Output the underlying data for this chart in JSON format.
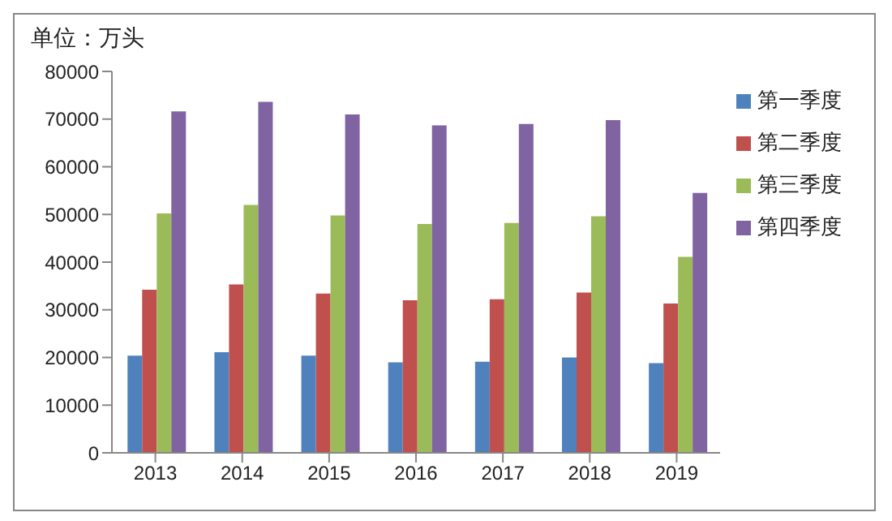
{
  "chart_data": {
    "type": "bar",
    "title": "单位：万头",
    "categories": [
      "2013",
      "2014",
      "2015",
      "2016",
      "2017",
      "2018",
      "2019"
    ],
    "series": [
      {
        "name": "第一季度",
        "color": "#4f81bd",
        "values": [
          20400,
          21100,
          20400,
          19000,
          19100,
          20000,
          18800
        ]
      },
      {
        "name": "第二季度",
        "color": "#c0504d",
        "values": [
          34200,
          35300,
          33400,
          32000,
          32200,
          33600,
          31300
        ]
      },
      {
        "name": "第三季度",
        "color": "#9bbb59",
        "values": [
          50200,
          52000,
          49800,
          48000,
          48200,
          49600,
          41100
        ]
      },
      {
        "name": "第四季度",
        "color": "#8064a2",
        "values": [
          71600,
          73600,
          71000,
          68700,
          69000,
          69800,
          54500
        ]
      }
    ],
    "ylim": [
      0,
      80000
    ],
    "yticks": [
      0,
      10000,
      20000,
      30000,
      40000,
      50000,
      60000,
      70000,
      80000
    ],
    "grid": false,
    "legend": "right"
  }
}
